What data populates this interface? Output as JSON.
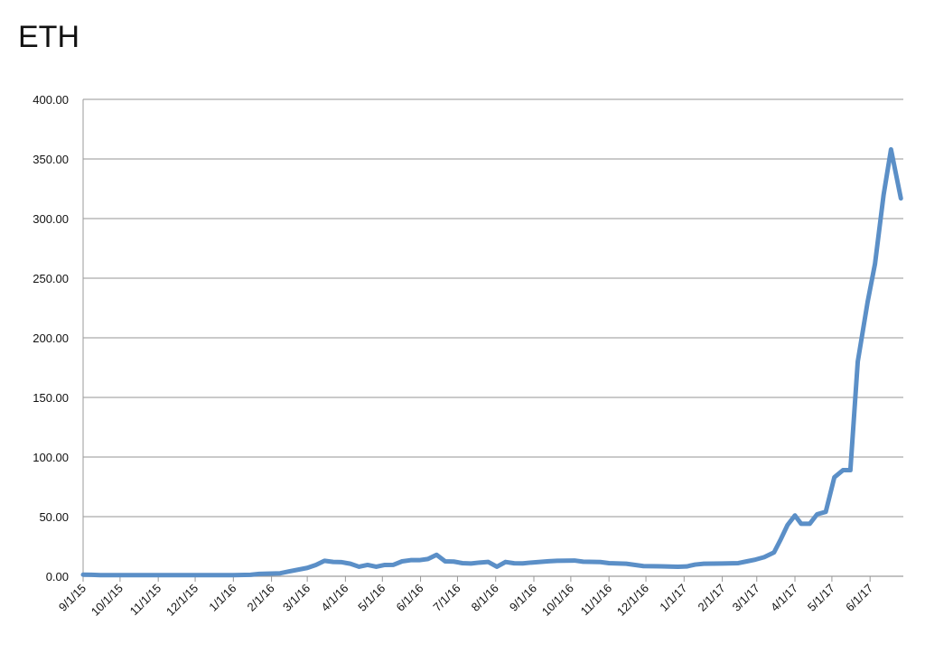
{
  "chart_data": {
    "type": "line",
    "title": "ETH",
    "color": "#5b8fc7",
    "grid": true,
    "x": [
      "2015-09-01",
      "2015-09-08",
      "2015-09-15",
      "2015-10-01",
      "2015-11-01",
      "2015-12-01",
      "2016-01-01",
      "2016-01-15",
      "2016-01-22",
      "2016-02-01",
      "2016-02-08",
      "2016-02-15",
      "2016-03-01",
      "2016-03-08",
      "2016-03-15",
      "2016-03-22",
      "2016-03-29",
      "2016-04-05",
      "2016-04-12",
      "2016-04-19",
      "2016-04-26",
      "2016-05-03",
      "2016-05-10",
      "2016-05-17",
      "2016-05-24",
      "2016-05-31",
      "2016-06-07",
      "2016-06-14",
      "2016-06-21",
      "2016-06-28",
      "2016-07-05",
      "2016-07-12",
      "2016-07-19",
      "2016-07-26",
      "2016-08-02",
      "2016-08-09",
      "2016-08-16",
      "2016-08-23",
      "2016-08-30",
      "2016-09-06",
      "2016-09-13",
      "2016-09-20",
      "2016-10-04",
      "2016-10-11",
      "2016-10-25",
      "2016-11-01",
      "2016-11-15",
      "2016-11-29",
      "2016-12-13",
      "2016-12-27",
      "2017-01-03",
      "2017-01-10",
      "2017-01-17",
      "2017-02-01",
      "2017-02-14",
      "2017-02-21",
      "2017-02-28",
      "2017-03-07",
      "2017-03-15",
      "2017-03-20",
      "2017-03-26",
      "2017-04-01",
      "2017-04-06",
      "2017-04-13",
      "2017-04-19",
      "2017-04-26",
      "2017-05-03",
      "2017-05-10",
      "2017-05-16",
      "2017-05-22",
      "2017-05-30",
      "2017-06-05",
      "2017-06-12",
      "2017-06-18",
      "2017-06-26"
    ],
    "values": [
      1.3,
      1.2,
      0.9,
      0.9,
      0.9,
      0.9,
      0.95,
      1.2,
      2,
      2.3,
      2.5,
      4,
      7,
      9.5,
      13,
      12,
      11.8,
      10.5,
      8,
      9.5,
      8,
      9.5,
      9.6,
      12.5,
      13.5,
      13.5,
      14.5,
      18,
      12.5,
      12.3,
      11,
      10.7,
      11.5,
      12,
      8,
      12,
      10.9,
      10.8,
      11.5,
      12,
      12.6,
      13,
      13.2,
      12.2,
      11.9,
      11,
      10.5,
      8.5,
      8.3,
      8,
      8.2,
      9.8,
      10.5,
      10.7,
      11,
      12.5,
      14,
      16,
      20,
      30,
      43,
      51,
      44,
      44,
      52,
      54,
      83,
      89,
      89,
      180,
      230,
      262,
      320,
      358,
      317
    ],
    "xlim": [
      "2015-09-01",
      "2017-06-28"
    ],
    "xticks": [
      {
        "value": "2015-09-01",
        "label": "9/1/15"
      },
      {
        "value": "2015-10-01",
        "label": "10/1/15"
      },
      {
        "value": "2015-11-01",
        "label": "11/1/15"
      },
      {
        "value": "2015-12-01",
        "label": "12/1/15"
      },
      {
        "value": "2016-01-01",
        "label": "1/1/16"
      },
      {
        "value": "2016-02-01",
        "label": "2/1/16"
      },
      {
        "value": "2016-03-01",
        "label": "3/1/16"
      },
      {
        "value": "2016-04-01",
        "label": "4/1/16"
      },
      {
        "value": "2016-05-01",
        "label": "5/1/16"
      },
      {
        "value": "2016-06-01",
        "label": "6/1/16"
      },
      {
        "value": "2016-07-01",
        "label": "7/1/16"
      },
      {
        "value": "2016-08-01",
        "label": "8/1/16"
      },
      {
        "value": "2016-09-01",
        "label": "9/1/16"
      },
      {
        "value": "2016-10-01",
        "label": "10/1/16"
      },
      {
        "value": "2016-11-01",
        "label": "11/1/16"
      },
      {
        "value": "2016-12-01",
        "label": "12/1/16"
      },
      {
        "value": "2017-01-01",
        "label": "1/1/17"
      },
      {
        "value": "2017-02-01",
        "label": "2/1/17"
      },
      {
        "value": "2017-03-01",
        "label": "3/1/17"
      },
      {
        "value": "2017-04-01",
        "label": "4/1/17"
      },
      {
        "value": "2017-05-01",
        "label": "5/1/17"
      },
      {
        "value": "2017-06-01",
        "label": "6/1/17"
      }
    ],
    "ylim": [
      0,
      400
    ],
    "yticks": [
      {
        "value": 0,
        "label": "0.00"
      },
      {
        "value": 50,
        "label": "50.00"
      },
      {
        "value": 100,
        "label": "100.00"
      },
      {
        "value": 150,
        "label": "150.00"
      },
      {
        "value": 200,
        "label": "200.00"
      },
      {
        "value": 250,
        "label": "250.00"
      },
      {
        "value": 300,
        "label": "300.00"
      },
      {
        "value": 350,
        "label": "350.00"
      },
      {
        "value": 400,
        "label": "400.00"
      }
    ]
  }
}
